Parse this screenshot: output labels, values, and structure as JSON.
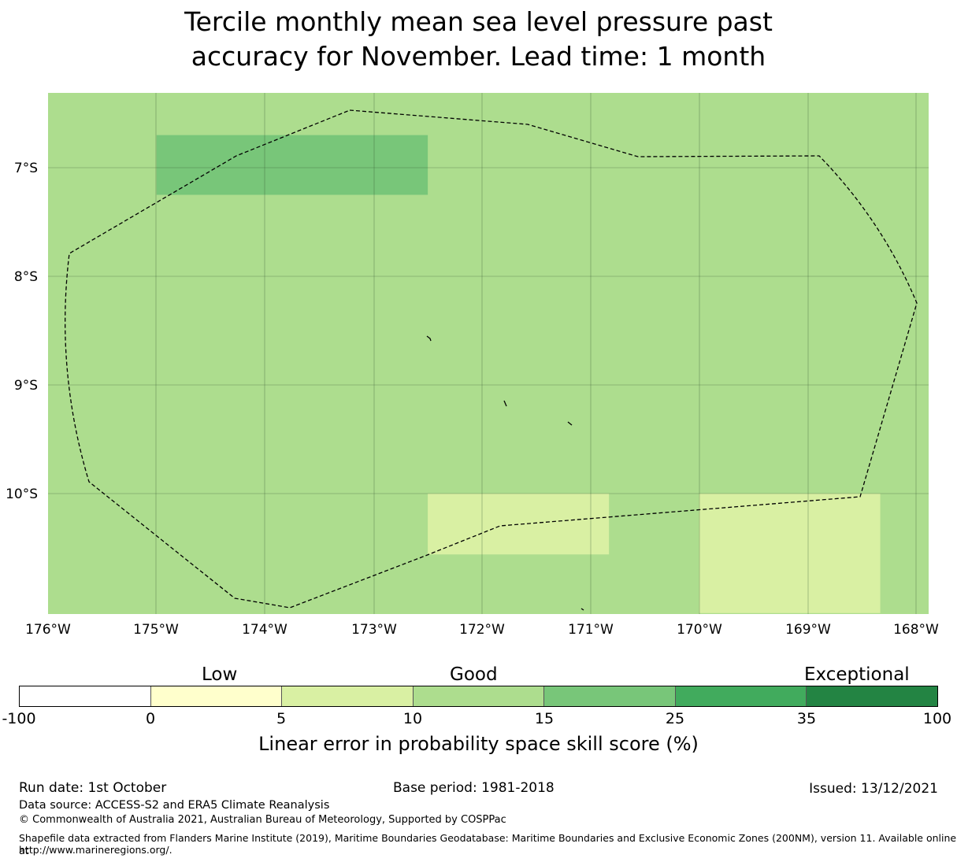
{
  "title_line1": "Tercile monthly mean sea level pressure past",
  "title_line2": "accuracy for November. Lead time: 1 month",
  "map": {
    "background_color": "#addd8e",
    "lon_ticks": [
      "176°W",
      "175°W",
      "174°W",
      "173°W",
      "172°W",
      "171°W",
      "170°W",
      "169°W",
      "168°W"
    ],
    "lat_ticks": [
      "7°S",
      "8°S",
      "9°S",
      "10°S"
    ],
    "regions": [
      {
        "name": "good-high",
        "color": "#78c679",
        "lon": [
          -175.0,
          -172.5
        ],
        "lat": [
          -6.7,
          -7.25
        ]
      },
      {
        "name": "low-south-west",
        "color": "#d9f0a3",
        "lon": [
          -172.5,
          -170.83
        ],
        "lat": [
          -10.0,
          -10.56
        ]
      },
      {
        "name": "low-south-east",
        "color": "#d9f0a3",
        "lon": [
          -170.0,
          -168.33
        ],
        "lat": [
          -10.0,
          -11.1
        ]
      }
    ]
  },
  "colorbar": {
    "category_low": "Low",
    "category_good": "Good",
    "category_exceptional": "Exceptional",
    "colors": [
      "#ffffff",
      "#ffffcc",
      "#d9f0a3",
      "#addd8e",
      "#78c679",
      "#41ab5d",
      "#238443"
    ],
    "ticks": [
      "-100",
      "0",
      "5",
      "10",
      "15",
      "25",
      "35",
      "100"
    ],
    "label": "Linear error in probability space skill score (%)"
  },
  "footer": {
    "run_date": "Run date: 1st October",
    "base_period": "Base period: 1981-2018",
    "issued": "Issued: 13/12/2021",
    "data_source": "Data source: ACCESS-S2 and ERA5 Climate Reanalysis",
    "copyright": "© Commonwealth of Australia 2021, Australian Bureau of Meteorology, Supported by COSPPac",
    "shapefile_line1": "Shapefile data extracted from Flanders Marine Institute (2019), Maritime Boundaries Geodatabase: Maritime Boundaries and Exclusive Economic Zones (200NM), version 11. Available online at",
    "shapefile_line2": "http://www.marineregions.org/."
  }
}
